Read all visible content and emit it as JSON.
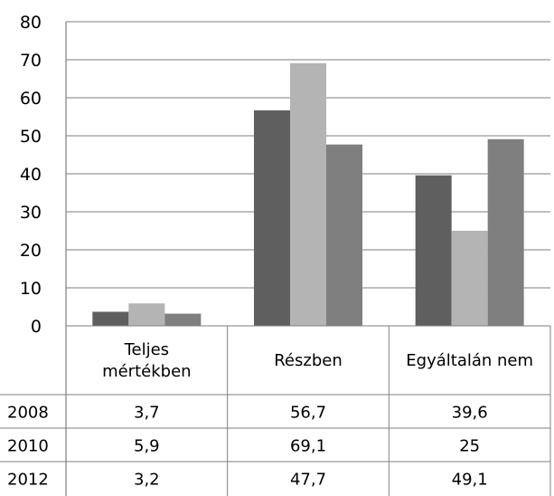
{
  "chart_data": {
    "type": "bar",
    "categories": [
      "Teljes mértékben",
      "Részben",
      "Egyáltalán nem"
    ],
    "category_lines": [
      [
        "Teljes",
        "mértékben"
      ],
      [
        "Részben"
      ],
      [
        "Egyáltalán nem"
      ]
    ],
    "series": [
      {
        "name": "2008",
        "values": [
          3.7,
          56.7,
          39.6
        ],
        "color": "#5f5f5f"
      },
      {
        "name": "2010",
        "values": [
          5.9,
          69.1,
          25
        ],
        "color": "#b4b4b4"
      },
      {
        "name": "2012",
        "values": [
          3.2,
          47.7,
          49.1
        ],
        "color": "#7f7f7f"
      }
    ],
    "value_labels": [
      [
        "3,7",
        "56,7",
        "39,6"
      ],
      [
        "5,9",
        "69,1",
        "25"
      ],
      [
        "3,2",
        "47,7",
        "49,1"
      ]
    ],
    "y_ticks": [
      "0",
      "10",
      "20",
      "30",
      "40",
      "50",
      "60",
      "70",
      "80"
    ],
    "ylim": [
      0,
      80
    ],
    "grid": true,
    "legend": "data table below chart"
  }
}
